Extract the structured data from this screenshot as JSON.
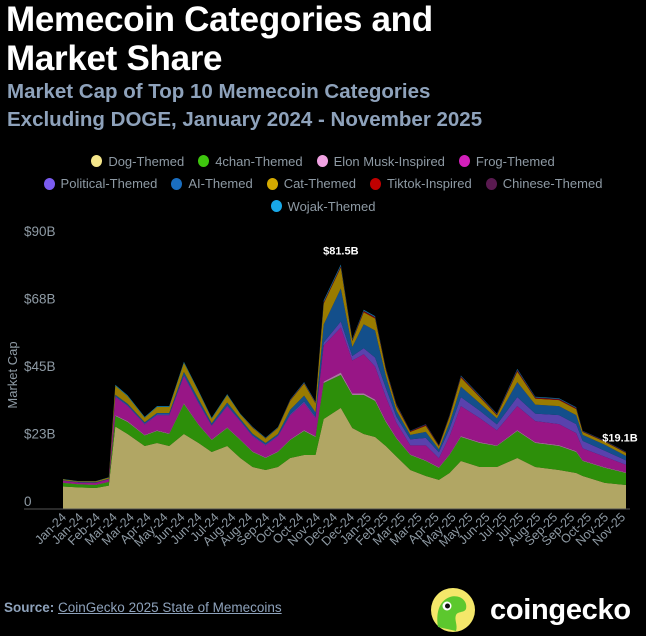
{
  "header": {
    "title_line1": "Memecoin Categories and",
    "title_line2": "Market Share",
    "subtitle_line1": "Market Cap of Top 10 Memecoin Categories",
    "subtitle_line2": "Excluding DOGE, January 2024 - November 2025"
  },
  "footer": {
    "source_label": "Source:",
    "source_link": "CoinGecko 2025 State of Memecoins",
    "logo_text": "coingecko"
  },
  "chart_data": {
    "type": "area",
    "stacked": true,
    "title": "",
    "xlabel": "",
    "ylabel": "Market Cap",
    "ylim": [
      0,
      90
    ],
    "y_ticks": [
      0,
      22.5,
      45,
      67.5,
      90
    ],
    "y_tick_labels": [
      "0",
      "$23B",
      "$45B",
      "$68B",
      "$90B"
    ],
    "x_tick_labels": [
      "Jan-24",
      "Jan-24",
      "Feb-24",
      "Mar-24",
      "Mar-24",
      "Apr-24",
      "May-24",
      "Jun-24",
      "Jun-24",
      "Jul-24",
      "Aug-24",
      "Aug-24",
      "Sep-24",
      "Oct-24",
      "Oct-24",
      "Nov-24",
      "Dec-24",
      "Dec-24",
      "Jan-25",
      "Feb-25",
      "Mar-25",
      "Mar-25",
      "Apr-25",
      "May-25",
      "May-25",
      "Jun-25",
      "Jul-25",
      "Jul-25",
      "Aug-25",
      "Sep-25",
      "Sep-25",
      "Oct-25",
      "Nov-25",
      "Nov-25"
    ],
    "grid": false,
    "legend_position": "top",
    "annotations": [
      {
        "text": "$81.5B",
        "x": "2024-12-06",
        "y": 81.5
      },
      {
        "text": "$19.1B",
        "x": "2025-11-20",
        "y": 19.1
      }
    ],
    "x": [
      "2024-01-01",
      "2024-01-20",
      "2024-02-10",
      "2024-02-26",
      "2024-03-05",
      "2024-03-20",
      "2024-04-10",
      "2024-04-25",
      "2024-05-10",
      "2024-05-28",
      "2024-06-15",
      "2024-07-01",
      "2024-07-20",
      "2024-08-05",
      "2024-08-20",
      "2024-09-05",
      "2024-09-20",
      "2024-10-05",
      "2024-10-22",
      "2024-11-05",
      "2024-11-15",
      "2024-12-06",
      "2024-12-20",
      "2025-01-03",
      "2025-01-17",
      "2025-01-30",
      "2025-02-12",
      "2025-03-01",
      "2025-03-20",
      "2025-04-05",
      "2025-04-18",
      "2025-05-02",
      "2025-05-25",
      "2025-06-15",
      "2025-07-10",
      "2025-08-01",
      "2025-08-30",
      "2025-09-20",
      "2025-09-28",
      "2025-10-25",
      "2025-11-20"
    ],
    "series": [
      {
        "name": "Dog-Themed",
        "color": "#f5e68a",
        "values": [
          7.5,
          7.2,
          7.0,
          7.8,
          27.5,
          25,
          21,
          22,
          21,
          25,
          22,
          19,
          21,
          17,
          14,
          13,
          14,
          17,
          18,
          18,
          30,
          33.7,
          27,
          25,
          24,
          21,
          17.5,
          13,
          11,
          9.7,
          12,
          16,
          14,
          14,
          17,
          14,
          13,
          12,
          11,
          8.7,
          8
        ]
      },
      {
        "name": "4chan-Themed",
        "color": "#3ec60e",
        "values": [
          1.2,
          1.0,
          1.0,
          1.2,
          3.5,
          4,
          3.5,
          4,
          4,
          10,
          6,
          4,
          6,
          6,
          5,
          4,
          5,
          6,
          8,
          6,
          12,
          11,
          11,
          13,
          12,
          8,
          6,
          5,
          5,
          4,
          6,
          8,
          8,
          7,
          9,
          8,
          8,
          7,
          5,
          5,
          4
        ]
      },
      {
        "name": "Elon Musk-Inspired",
        "color": "#f0a2e2",
        "values": [
          0.1,
          0.1,
          0.1,
          0.1,
          0.3,
          0.3,
          0.2,
          0.2,
          0.2,
          0.3,
          0.2,
          0.2,
          0.2,
          0.2,
          0.2,
          0.2,
          0.2,
          0.2,
          0.3,
          0.3,
          0.5,
          0.8,
          0.5,
          0.6,
          0.5,
          0.4,
          0.3,
          0.2,
          0.2,
          0.2,
          0.2,
          0.3,
          0.3,
          0.2,
          0.3,
          0.3,
          0.3,
          0.3,
          0.2,
          0.2,
          0.2
        ]
      },
      {
        "name": "Frog-Themed",
        "color": "#d21fba",
        "values": [
          0.6,
          0.5,
          0.6,
          0.8,
          6,
          5,
          3.5,
          5,
          6,
          9,
          7,
          4.5,
          7,
          6,
          5,
          4,
          5,
          8,
          9,
          6,
          12,
          15,
          11,
          13,
          11,
          8,
          5,
          3,
          5,
          3,
          6,
          10,
          8,
          5,
          8,
          7,
          7,
          6,
          4,
          3.5,
          2.5
        ]
      },
      {
        "name": "Political-Themed",
        "color": "#7b5cf0",
        "values": [
          0.1,
          0.1,
          0.1,
          0.1,
          0.3,
          0.3,
          0.3,
          0.3,
          0.3,
          0.4,
          0.4,
          0.3,
          0.3,
          0.3,
          0.3,
          0.3,
          0.3,
          0.4,
          0.5,
          0.4,
          1,
          2,
          1.5,
          2,
          3,
          3,
          2,
          2,
          2.5,
          2,
          2.5,
          3,
          2.5,
          2,
          3,
          2.5,
          3,
          3,
          2.5,
          2,
          1.5
        ]
      },
      {
        "name": "AI-Themed",
        "color": "#1a6ec0",
        "values": [
          0.1,
          0.1,
          0.1,
          0.1,
          0.5,
          0.5,
          0.4,
          0.5,
          0.5,
          1,
          1,
          0.6,
          1,
          0.6,
          0.6,
          0.5,
          0.5,
          1.5,
          2,
          1.5,
          6,
          11,
          3,
          8,
          9,
          4,
          2,
          1.5,
          2,
          1,
          2,
          3.5,
          2.5,
          2,
          5,
          3,
          3,
          3,
          2,
          2,
          1.5
        ]
      },
      {
        "name": "Cat-Themed",
        "color": "#d4aa00",
        "values": [
          0.3,
          0.2,
          0.3,
          0.4,
          3,
          2.5,
          1.5,
          2,
          2,
          3,
          2.5,
          1.5,
          2.5,
          1.5,
          2,
          1.5,
          2,
          3,
          4,
          3,
          7,
          7,
          2,
          4,
          4,
          2,
          1.5,
          1,
          2,
          1,
          2,
          3,
          2,
          1,
          3.5,
          2,
          2,
          2,
          1,
          1,
          1
        ]
      },
      {
        "name": "Tiktok-Inspired",
        "color": "#c00000",
        "values": [
          0,
          0,
          0,
          0,
          0,
          0,
          0,
          0,
          0,
          0,
          0,
          0,
          0,
          0,
          0.1,
          0.1,
          0.1,
          0.2,
          0.2,
          0.2,
          0.3,
          0.3,
          0.2,
          0.3,
          0.3,
          0.3,
          0.3,
          0.2,
          0.2,
          0.2,
          0.2,
          0.3,
          0.2,
          0.2,
          0.3,
          0.2,
          0.2,
          0.2,
          0.1,
          0.1,
          0.1
        ]
      },
      {
        "name": "Chinese-Themed",
        "color": "#5a1a50",
        "values": [
          0,
          0,
          0,
          0,
          0,
          0,
          0,
          0,
          0,
          0,
          0,
          0,
          0,
          0,
          0,
          0,
          0,
          0,
          0,
          0,
          0.2,
          0.2,
          0.2,
          0.2,
          0.2,
          0.2,
          0.2,
          0.1,
          0.3,
          0.1,
          0.2,
          0.2,
          0.2,
          0.2,
          0.3,
          0.2,
          0.2,
          0.2,
          0.2,
          0.2,
          0.2
        ]
      },
      {
        "name": "Wojak-Themed",
        "color": "#18a8e8",
        "values": [
          0.1,
          0.1,
          0.1,
          0.1,
          0.3,
          0.3,
          0.3,
          0.3,
          0.3,
          0.4,
          0.3,
          0.3,
          0.3,
          0.2,
          0.2,
          0.2,
          0.2,
          0.2,
          0.3,
          0.3,
          0.5,
          0.5,
          0.3,
          0.3,
          0.3,
          0.2,
          0.2,
          0.1,
          0.1,
          0.1,
          0.2,
          0.2,
          0.2,
          0.2,
          0.3,
          0.2,
          0.2,
          0.2,
          0.1,
          0.1,
          0.1
        ]
      }
    ]
  }
}
